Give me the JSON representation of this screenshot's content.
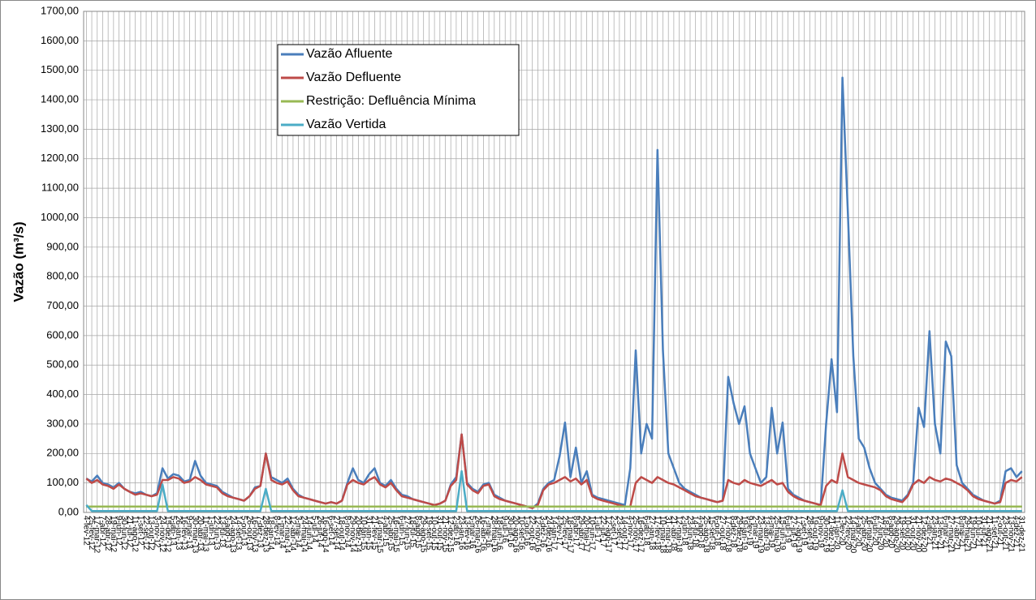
{
  "chart_data": {
    "type": "line",
    "ylabel": "Vazão (m³/s)",
    "ylim": [
      0,
      1700
    ],
    "yticks": [
      {
        "value": 0,
        "label": "0,00"
      },
      {
        "value": 100,
        "label": "100,00"
      },
      {
        "value": 200,
        "label": "200,00"
      },
      {
        "value": 300,
        "label": "300,00"
      },
      {
        "value": 400,
        "label": "400,00"
      },
      {
        "value": 500,
        "label": "500,00"
      },
      {
        "value": 600,
        "label": "600,00"
      },
      {
        "value": 700,
        "label": "700,00"
      },
      {
        "value": 800,
        "label": "800,00"
      },
      {
        "value": 900,
        "label": "900,00"
      },
      {
        "value": 1000,
        "label": "1000,00"
      },
      {
        "value": 1100,
        "label": "1100,00"
      },
      {
        "value": 1200,
        "label": "1200,00"
      },
      {
        "value": 1300,
        "label": "1300,00"
      },
      {
        "value": 1400,
        "label": "1400,00"
      },
      {
        "value": 1500,
        "label": "1500,00"
      },
      {
        "value": 1600,
        "label": "1600,00"
      },
      {
        "value": 1700,
        "label": "1700,00"
      }
    ],
    "grid": true,
    "categories": [
      "4-fev-12",
      "25-fev-12",
      "17-mar-12",
      "7-abr-12",
      "28-abr-12",
      "19-mai-12",
      "9-jun-12",
      "30-jun-12",
      "21-jul-12",
      "11-ago-12",
      "1-set-12",
      "22-set-12",
      "13-out-12",
      "3-nov-12",
      "24-nov-12",
      "15-dez-12",
      "5-jan-13",
      "26-jan-13",
      "16-fev-13",
      "9-mar-13",
      "30-mar-13",
      "20-abr-13",
      "11-mai-13",
      "1-jun-13",
      "22-jun-13",
      "13-jul-13",
      "3-ago-13",
      "24-ago-13",
      "14-set-13",
      "5-out-13",
      "26-out-13",
      "16-nov-13",
      "7-dez-13",
      "28-dez-13",
      "18-jan-14",
      "8-fev-14",
      "1-mar-14",
      "22-mar-14",
      "12-abr-14",
      "3-mai-14",
      "24-mai-14",
      "14-jun-14",
      "5-jul-14",
      "26-jul-14",
      "16-ago-14",
      "6-set-14",
      "27-set-14",
      "18-out-14",
      "8-nov-14",
      "29-nov-14",
      "20-dez-14",
      "10-jan-15",
      "31-jan-15",
      "21-fev-15",
      "14-mar-15",
      "4-abr-15",
      "25-abr-15",
      "16-mai-15",
      "6-jun-15",
      "27-jun-15",
      "18-jul-15",
      "8-ago-15",
      "29-ago-15",
      "19-set-15",
      "10-out-15",
      "31-out-15",
      "21-nov-15",
      "12-dez-15",
      "2-jan-16",
      "23-jan-16",
      "13-fev-16",
      "5-mar-16",
      "26-mar-16",
      "16-abr-16",
      "7-mai-16",
      "28-mai-16",
      "18-jun-16",
      "9-jul-16",
      "30-jul-16",
      "20-ago-16",
      "10-set-16",
      "1-out-16",
      "22-out-16",
      "12-nov-16",
      "3-dez-16",
      "24-dez-16",
      "14-jan-17",
      "4-fev-17",
      "25-fev-17",
      "18-mar-17",
      "8-abr-17",
      "29-abr-17",
      "20-mai-17",
      "10-jun-17",
      "1-jul-17",
      "22-jul-17",
      "12-ago-17",
      "2-set-17",
      "23-set-17",
      "14-out-17",
      "4-nov-17",
      "25-nov-17",
      "16-dez-17",
      "6-jan-18",
      "27-jan-18",
      "17-fev-18",
      "10-mar-18",
      "31-mar-18",
      "21-abr-18",
      "12-mai-18",
      "2-jun-18",
      "23-jun-18",
      "14-jul-18",
      "4-ago-18",
      "25-ago-18",
      "15-set-18",
      "6-out-18",
      "27-out-18",
      "17-nov-18",
      "8-dez-18",
      "29-dez-18",
      "19-jan-19",
      "9-fev-19",
      "2-mar-19",
      "23-mar-19",
      "13-abr-19",
      "4-mai-19",
      "25-mai-19",
      "15-jun-19",
      "6-jul-19",
      "27-jul-19",
      "17-ago-19",
      "7-set-19",
      "28-set-19",
      "19-out-19",
      "9-nov-19",
      "30-nov-19",
      "21-dez-19",
      "11-jan-20",
      "1-fev-20",
      "22-fev-20",
      "14-mar-20",
      "4-abr-20",
      "25-abr-20",
      "16-mai-20",
      "6-jun-20",
      "27-jun-20",
      "18-jul-20",
      "8-ago-20",
      "29-ago-20",
      "19-set-20",
      "10-out-20",
      "31-out-20",
      "21-nov-20",
      "12-dez-20",
      "2-jan-21",
      "23-jan-21",
      "13-fev-21",
      "6-mar-21",
      "27-mar-21",
      "17-abr-21",
      "8-mai-21",
      "29-mai-21",
      "19-jun-21",
      "10-jul-21",
      "31-jul-21",
      "21-ago-21",
      "11-set-21",
      "2-out-21",
      "23-out-21",
      "13-nov-21",
      "4-dez-21",
      "31-dez-21"
    ],
    "series": [
      {
        "name": "Vazão Afluente",
        "color": "#4a7ebb",
        "values": [
          115,
          105,
          125,
          100,
          95,
          85,
          100,
          80,
          70,
          65,
          70,
          60,
          55,
          65,
          150,
          115,
          130,
          125,
          105,
          110,
          175,
          125,
          100,
          95,
          90,
          70,
          60,
          50,
          45,
          40,
          55,
          85,
          90,
          200,
          120,
          110,
          100,
          115,
          80,
          60,
          50,
          45,
          40,
          35,
          30,
          35,
          30,
          40,
          100,
          150,
          110,
          100,
          130,
          150,
          100,
          90,
          110,
          80,
          60,
          55,
          45,
          40,
          35,
          30,
          25,
          30,
          40,
          95,
          120,
          265,
          100,
          80,
          70,
          95,
          100,
          60,
          50,
          40,
          35,
          30,
          25,
          20,
          15,
          30,
          80,
          100,
          110,
          190,
          305,
          120,
          220,
          100,
          140,
          60,
          50,
          45,
          40,
          35,
          30,
          25,
          150,
          550,
          200,
          300,
          250,
          1230,
          550,
          200,
          150,
          100,
          80,
          70,
          60,
          50,
          45,
          40,
          35,
          40,
          460,
          370,
          300,
          360,
          200,
          150,
          100,
          120,
          355,
          200,
          305,
          80,
          60,
          50,
          40,
          35,
          30,
          25,
          300,
          520,
          340,
          1475,
          1015,
          530,
          250,
          220,
          150,
          100,
          80,
          60,
          50,
          45,
          40,
          60,
          100,
          355,
          290,
          615,
          300,
          200,
          580,
          530,
          160,
          100,
          80,
          60,
          50,
          40,
          35,
          30,
          40,
          140,
          150,
          120,
          140
        ]
      },
      {
        "name": "Vazão Defluente",
        "color": "#be4b48",
        "values": [
          115,
          100,
          110,
          95,
          90,
          80,
          95,
          80,
          70,
          60,
          65,
          60,
          55,
          60,
          110,
          110,
          120,
          115,
          100,
          105,
          120,
          110,
          95,
          90,
          85,
          65,
          55,
          50,
          45,
          40,
          55,
          80,
          90,
          200,
          110,
          100,
          95,
          105,
          75,
          55,
          50,
          45,
          40,
          35,
          30,
          35,
          30,
          40,
          95,
          110,
          100,
          95,
          110,
          120,
          95,
          85,
          100,
          75,
          55,
          50,
          45,
          40,
          35,
          30,
          25,
          30,
          40,
          90,
          110,
          265,
          95,
          75,
          65,
          90,
          95,
          55,
          45,
          40,
          35,
          30,
          25,
          20,
          15,
          25,
          75,
          95,
          100,
          110,
          120,
          105,
          115,
          95,
          110,
          55,
          45,
          40,
          35,
          30,
          25,
          20,
          20,
          100,
          120,
          110,
          100,
          120,
          110,
          100,
          95,
          85,
          75,
          65,
          55,
          50,
          45,
          40,
          35,
          40,
          110,
          100,
          95,
          110,
          100,
          95,
          90,
          100,
          110,
          95,
          100,
          70,
          55,
          45,
          40,
          35,
          30,
          25,
          90,
          110,
          100,
          200,
          120,
          110,
          100,
          95,
          90,
          85,
          75,
          55,
          45,
          40,
          35,
          55,
          95,
          110,
          100,
          120,
          110,
          105,
          115,
          110,
          100,
          90,
          75,
          55,
          45,
          40,
          35,
          30,
          35,
          100,
          110,
          105,
          120
        ]
      },
      {
        "name": "Restrição: Defluência Mínima",
        "color": "#98b954",
        "values": [
          20,
          20,
          20,
          20,
          20,
          20,
          20,
          20,
          20,
          20,
          20,
          20,
          20,
          20,
          20,
          20,
          20,
          20,
          20,
          20,
          20,
          20,
          20,
          20,
          20,
          20,
          20,
          20,
          20,
          20,
          20,
          20,
          20,
          20,
          20,
          20,
          20,
          20,
          20,
          20,
          20,
          20,
          20,
          20,
          20,
          20,
          20,
          20,
          20,
          20,
          20,
          20,
          20,
          20,
          20,
          20,
          20,
          20,
          20,
          20,
          20,
          20,
          20,
          20,
          20,
          20,
          20,
          20,
          20,
          20,
          20,
          20,
          20,
          20,
          20,
          20,
          20,
          20,
          20,
          20,
          20,
          20,
          20,
          20,
          20,
          20,
          20,
          20,
          20,
          20,
          20,
          20,
          20,
          20,
          20,
          20,
          20,
          20,
          20,
          20,
          20,
          20,
          20,
          20,
          20,
          20,
          20,
          20,
          20,
          20,
          20,
          20,
          20,
          20,
          20,
          20,
          20,
          20,
          20,
          20,
          20,
          20,
          20,
          20,
          20,
          20,
          20,
          20,
          20,
          20,
          20,
          20,
          20,
          20,
          20,
          20,
          20,
          20,
          20,
          20,
          20,
          20,
          20,
          20,
          20,
          20,
          20,
          20,
          20,
          20,
          20,
          20,
          20,
          20,
          20,
          20,
          20,
          20,
          20,
          20,
          20,
          20,
          20,
          20,
          20,
          20,
          20,
          20,
          20,
          20,
          20,
          20,
          20
        ]
      },
      {
        "name": "Vazão Vertida",
        "color": "#4bacc6",
        "values": [
          25,
          5,
          5,
          5,
          5,
          5,
          5,
          5,
          5,
          5,
          5,
          5,
          5,
          5,
          95,
          5,
          5,
          5,
          5,
          5,
          5,
          5,
          5,
          5,
          5,
          5,
          5,
          5,
          5,
          5,
          5,
          5,
          5,
          80,
          5,
          5,
          5,
          5,
          5,
          5,
          5,
          5,
          5,
          5,
          5,
          5,
          5,
          5,
          5,
          5,
          5,
          5,
          5,
          5,
          5,
          5,
          5,
          5,
          5,
          5,
          5,
          5,
          5,
          5,
          5,
          5,
          5,
          5,
          5,
          140,
          5,
          5,
          5,
          5,
          5,
          5,
          5,
          5,
          5,
          5,
          5,
          5,
          5,
          5,
          5,
          5,
          5,
          5,
          5,
          5,
          5,
          5,
          5,
          5,
          5,
          5,
          5,
          5,
          5,
          5,
          5,
          5,
          5,
          5,
          5,
          5,
          5,
          5,
          5,
          5,
          5,
          5,
          5,
          5,
          5,
          5,
          5,
          5,
          5,
          5,
          5,
          5,
          5,
          5,
          5,
          5,
          5,
          5,
          5,
          5,
          5,
          5,
          5,
          5,
          5,
          5,
          5,
          5,
          5,
          75,
          5,
          5,
          5,
          5,
          5,
          5,
          5,
          5,
          5,
          5,
          5,
          5,
          5,
          5,
          5,
          5,
          5,
          5,
          5,
          5,
          5,
          5,
          5,
          5,
          5,
          5,
          5,
          5,
          5,
          5,
          5,
          5,
          5
        ]
      }
    ]
  }
}
